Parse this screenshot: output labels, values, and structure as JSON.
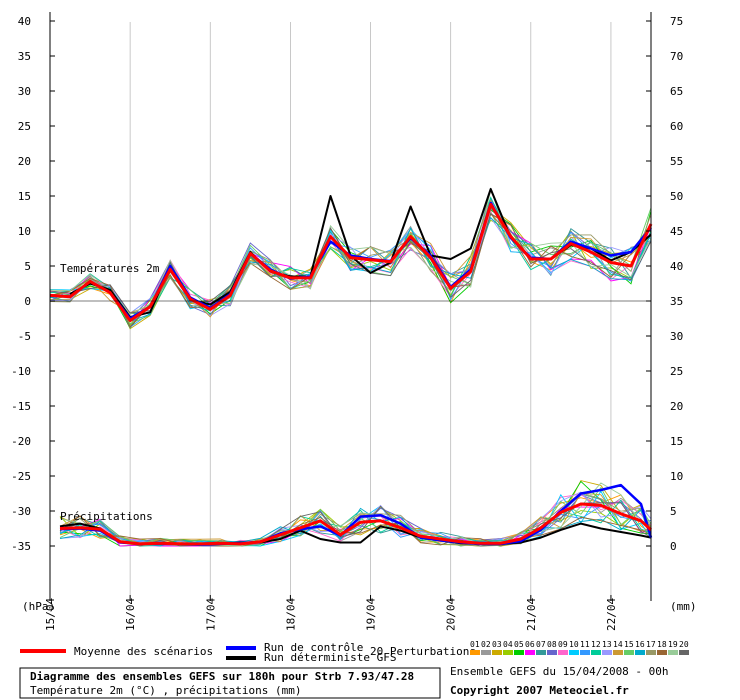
{
  "chart_data": {
    "type": "line",
    "left_axis_label": "(hPa)",
    "right_axis_label": "(mm)",
    "left_ticks": [
      40,
      35,
      30,
      25,
      20,
      15,
      10,
      5,
      0,
      -5,
      -10,
      -15,
      -20,
      -25,
      -30,
      -35
    ],
    "right_ticks": [
      75,
      70,
      65,
      60,
      55,
      50,
      45,
      40,
      35,
      30,
      25,
      20,
      15,
      10,
      5,
      0
    ],
    "ylim": [
      -42,
      42
    ],
    "date_labels": [
      "15/04",
      "16/04",
      "17/04",
      "18/04",
      "19/04",
      "20/04",
      "21/04",
      "22/04"
    ],
    "x_hours_range": [
      0,
      180
    ],
    "section_labels": {
      "temperature": "Températures 2m",
      "precipitation": "Précipitations"
    },
    "temperature": {
      "hours": [
        0,
        6,
        12,
        18,
        24,
        30,
        36,
        42,
        48,
        54,
        60,
        66,
        72,
        78,
        84,
        90,
        96,
        102,
        108,
        114,
        120,
        126,
        132,
        138,
        144,
        150,
        156,
        162,
        168,
        174,
        180
      ],
      "mean": [
        0.8,
        0.6,
        2.8,
        1.2,
        -2.8,
        -0.8,
        4.5,
        0.3,
        -1.2,
        0.8,
        6.8,
        4.3,
        3.3,
        3.3,
        9.2,
        6.2,
        5.9,
        5.6,
        9.2,
        6.2,
        1.8,
        4.2,
        13.8,
        9.2,
        6.0,
        6.0,
        8.2,
        7.0,
        5.5,
        5.0,
        11.0
      ],
      "control": [
        0.8,
        0.6,
        2.8,
        1.2,
        -2.5,
        -0.8,
        5.0,
        0.5,
        -1.0,
        1.0,
        6.8,
        4.5,
        3.2,
        3.5,
        8.5,
        6.5,
        6.0,
        5.7,
        9.0,
        6.5,
        2.0,
        4.5,
        14.0,
        9.0,
        6.2,
        6.0,
        8.5,
        7.5,
        6.5,
        7.0,
        10.5
      ],
      "deterministic": [
        null,
        1.0,
        2.5,
        1.6,
        -2.3,
        -1.6,
        5.0,
        0.2,
        -0.5,
        1.3,
        7.0,
        4.2,
        3.5,
        3.5,
        15.0,
        6.5,
        4.0,
        5.5,
        13.5,
        6.5,
        6.0,
        7.5,
        16.0,
        9.0,
        6.0,
        6.0,
        8.0,
        7.5,
        5.8,
        7.0,
        9.5
      ]
    },
    "precipitation": {
      "hours": [
        3,
        9,
        15,
        21,
        27,
        33,
        39,
        45,
        51,
        57,
        63,
        69,
        75,
        81,
        87,
        93,
        99,
        105,
        111,
        117,
        123,
        129,
        135,
        141,
        147,
        153,
        159,
        165,
        171,
        177,
        180
      ],
      "mean": [
        2.5,
        2.6,
        2.4,
        0.6,
        0.3,
        0.4,
        0.3,
        0.3,
        0.4,
        0.3,
        0.6,
        1.6,
        2.6,
        3.6,
        1.6,
        3.4,
        3.6,
        2.6,
        1.4,
        1.0,
        0.6,
        0.4,
        0.4,
        1.0,
        2.6,
        4.8,
        6.0,
        5.8,
        4.6,
        3.6,
        2.3
      ],
      "control": [
        2.4,
        2.5,
        2.2,
        0.5,
        0.3,
        0.3,
        0.3,
        0.2,
        0.3,
        0.4,
        0.6,
        1.8,
        2.4,
        2.8,
        1.5,
        4.2,
        4.4,
        3.2,
        1.2,
        0.8,
        0.5,
        0.3,
        0.3,
        0.7,
        2.3,
        5.0,
        7.5,
        8.0,
        8.7,
        6.0,
        1.2
      ],
      "deterministic": [
        2.8,
        3.2,
        2.5,
        0.6,
        0.3,
        0.4,
        0.3,
        0.3,
        0.3,
        0.5,
        0.5,
        1.0,
        2.2,
        1.0,
        0.5,
        0.5,
        2.8,
        2.2,
        1.2,
        0.8,
        0.4,
        0.3,
        0.3,
        0.5,
        1.2,
        2.3,
        3.2,
        2.5,
        2.0,
        1.5,
        1.2
      ]
    },
    "perturbation_ids": [
      "01",
      "02",
      "03",
      "04",
      "05",
      "06",
      "07",
      "08",
      "09",
      "10",
      "11",
      "12",
      "13",
      "14",
      "15",
      "16",
      "17",
      "18",
      "19",
      "20"
    ],
    "perturbation_colors": [
      "#ff9900",
      "#999999",
      "#ccaa00",
      "#99cc00",
      "#00cc00",
      "#ff00ff",
      "#339999",
      "#6666cc",
      "#ff66cc",
      "#00ccff",
      "#3399ff",
      "#00cc99",
      "#9999ff",
      "#cc9933",
      "#66cc66",
      "#00aacc",
      "#999966",
      "#996633",
      "#99cc99",
      "#666666"
    ],
    "colors": {
      "mean": "#ff0000",
      "control": "#0000ff",
      "deterministic": "#000000"
    }
  },
  "legend": {
    "mean": "Moyenne des scénarios",
    "control": "Run de contrôle",
    "deterministic": "Run déterministe GFS",
    "perturbations": "20 Perturbations"
  },
  "footer": {
    "title": "Diagramme des ensembles GEFS sur 180h pour Strb 7.93/47.28",
    "subtitle": "Température 2m (°C) , précipitations (mm)",
    "ensemble": "Ensemble GEFS du 15/04/2008 - 00h",
    "copyright": "Copyright 2007 Meteociel.fr"
  }
}
